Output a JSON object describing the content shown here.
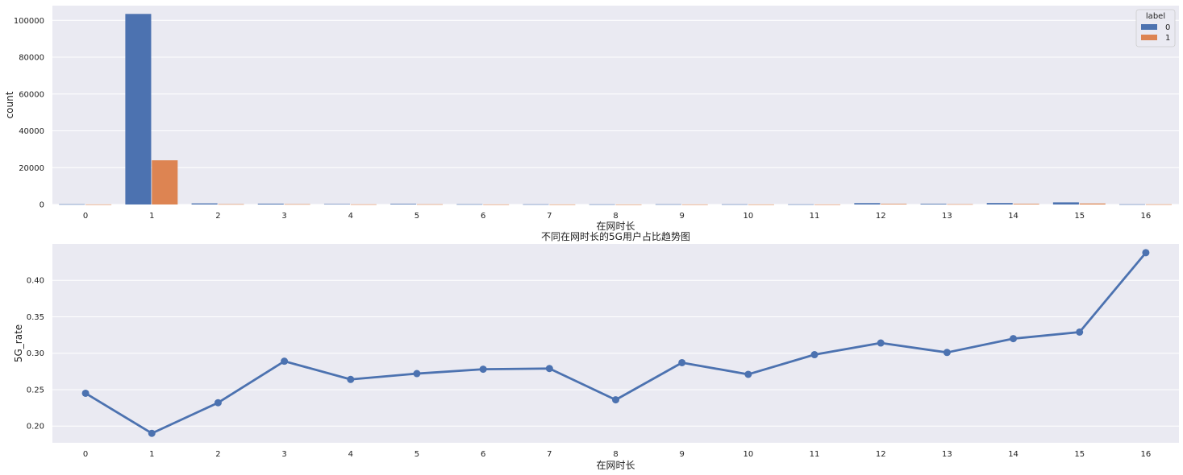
{
  "chart_data": [
    {
      "type": "bar",
      "title": "",
      "xlabel": "在网时长",
      "ylabel": "count",
      "categories": [
        "0",
        "1",
        "2",
        "3",
        "4",
        "5",
        "6",
        "7",
        "8",
        "9",
        "10",
        "11",
        "12",
        "13",
        "14",
        "15",
        "16"
      ],
      "series": [
        {
          "name": "0",
          "color": "#4c72b0",
          "values": [
            150,
            103500,
            600,
            450,
            250,
            350,
            150,
            120,
            100,
            130,
            120,
            100,
            750,
            380,
            800,
            1150,
            120
          ]
        },
        {
          "name": "1",
          "color": "#dd8452",
          "values": [
            50,
            24000,
            180,
            180,
            90,
            130,
            55,
            45,
            30,
            50,
            45,
            40,
            340,
            160,
            370,
            550,
            95
          ]
        }
      ],
      "ylim": [
        0,
        108000
      ],
      "yticks": [
        0,
        20000,
        40000,
        60000,
        80000,
        100000
      ],
      "legend": {
        "title": "label",
        "position": "top-right"
      },
      "grid": true
    },
    {
      "type": "line",
      "title": "不同在网时长的5G用户占比趋势图",
      "xlabel": "在网时长",
      "ylabel": "5G_rate",
      "x": [
        "0",
        "1",
        "2",
        "3",
        "4",
        "5",
        "6",
        "7",
        "8",
        "9",
        "10",
        "11",
        "12",
        "13",
        "14",
        "15",
        "16"
      ],
      "series": [
        {
          "color": "#4c72b0",
          "values": [
            0.245,
            0.19,
            0.232,
            0.289,
            0.264,
            0.272,
            0.278,
            0.279,
            0.236,
            0.287,
            0.271,
            0.298,
            0.314,
            0.301,
            0.32,
            0.329,
            0.438
          ]
        }
      ],
      "ylim": [
        0.177,
        0.45
      ],
      "yticks": [
        0.2,
        0.25,
        0.3,
        0.35,
        0.4
      ],
      "ytick_labels": [
        "0.20",
        "0.25",
        "0.30",
        "0.35",
        "0.40"
      ],
      "grid": true
    }
  ]
}
